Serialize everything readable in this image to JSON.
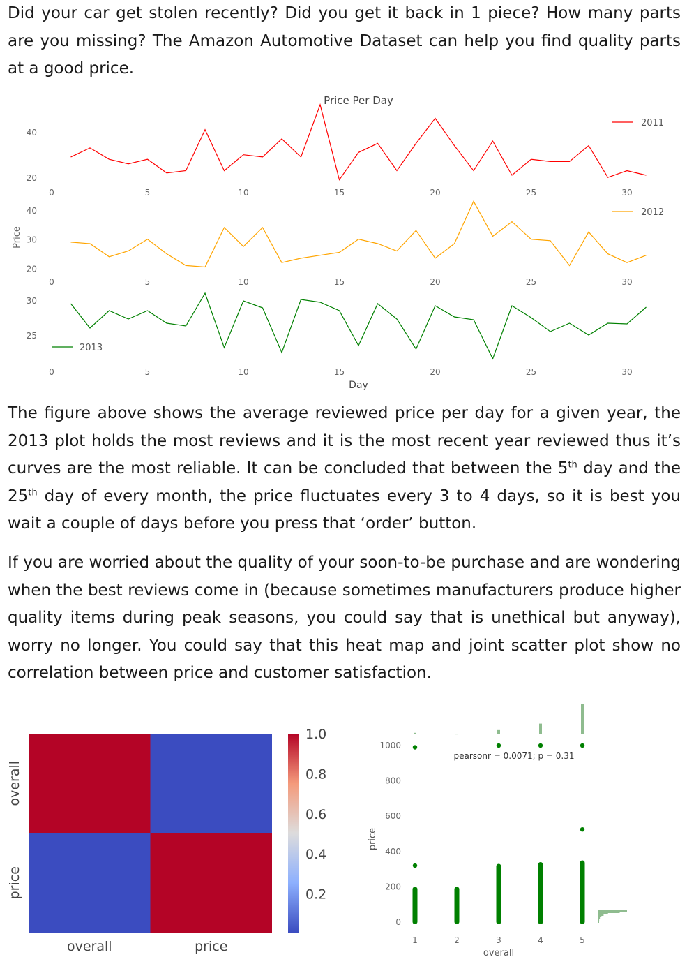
{
  "paragraphs": {
    "p1": "Did your car get stolen recently? Did you get it back in 1 piece? How many parts are you missing? The Amazon Automotive Dataset can help you find quality parts at a good price.",
    "p2_a": "The figure above shows the average reviewed price per day for a given year, the 2013 plot holds the most reviews and it is the most recent year reviewed thus it’s curves are the most reliable. It can be concluded that between the 5",
    "p2_sup1": "th",
    "p2_b": " day and the 25",
    "p2_sup2": "th",
    "p2_c": " day of every month, the price fluctuates every 3 to 4 days, so it is best you wait a couple of days before you press that ‘order’ button.",
    "p3": "If you are worried about the quality of your soon-to-be purchase and are wondering when the best reviews come in (because sometimes manufacturers produce higher quality items during peak seasons, you could say that is unethical but anyway), worry no longer. You could say that this heat map and joint scatter plot show no correlation between price and customer satisfaction."
  },
  "chart_data": [
    {
      "type": "line",
      "title": "Price Per Day",
      "xlabel": "Day",
      "ylabel": "Price",
      "x": [
        1,
        2,
        3,
        4,
        5,
        6,
        7,
        8,
        9,
        10,
        11,
        12,
        13,
        14,
        15,
        16,
        17,
        18,
        19,
        20,
        21,
        22,
        23,
        24,
        25,
        26,
        27,
        28,
        29,
        30,
        31
      ],
      "xticks": [
        0,
        5,
        10,
        15,
        20,
        25,
        30
      ],
      "grid": false,
      "series": [
        {
          "name": "2011",
          "color": "#ff0000",
          "ylim": [
            17,
            52
          ],
          "yticks": [
            20,
            40
          ],
          "values": [
            29,
            33,
            28,
            26,
            28,
            22,
            23,
            41,
            23,
            30,
            29,
            37,
            29,
            52,
            19,
            31,
            35,
            23,
            35,
            46,
            34,
            23,
            36,
            21,
            28,
            27,
            27,
            34,
            20,
            23,
            21
          ]
        },
        {
          "name": "2012",
          "color": "#ffa500",
          "ylim": [
            17.5,
            45
          ],
          "yticks": [
            20,
            30,
            40
          ],
          "values": [
            29,
            28.5,
            24,
            26,
            30,
            25,
            21,
            20.5,
            34,
            27.5,
            34,
            22,
            23.5,
            24.5,
            25.5,
            30,
            28.5,
            26,
            33,
            23.5,
            28.5,
            43,
            31,
            36,
            30,
            29.5,
            21,
            32.5,
            25,
            22,
            24.5
          ]
        },
        {
          "name": "2013",
          "color": "#008000",
          "ylim": [
            21,
            32
          ],
          "yticks": [
            25,
            30
          ],
          "values": [
            29.5,
            26,
            28.5,
            27.3,
            28.5,
            26.7,
            26.3,
            31,
            23.2,
            29.9,
            28.9,
            22.5,
            30.1,
            29.7,
            28.5,
            23.5,
            29.5,
            27.3,
            23,
            29.2,
            27.6,
            27.2,
            21.6,
            29.2,
            27.5,
            25.5,
            26.7,
            25,
            26.7,
            26.6,
            29
          ]
        }
      ]
    },
    {
      "type": "heatmap",
      "rows": [
        "overall",
        "price"
      ],
      "columns": [
        "overall",
        "price"
      ],
      "values": [
        [
          1.0,
          0.0071
        ],
        [
          0.0071,
          1.0
        ]
      ],
      "colormap": "coolwarm",
      "colorbar_ticks": [
        "1.0",
        "0.8",
        "0.6",
        "0.4",
        "0.2"
      ],
      "colorbar_range": [
        0.0071,
        1.0
      ]
    },
    {
      "type": "scatter",
      "xlabel": "overall",
      "ylabel": "price",
      "annotation": "pearsonr = 0.0071; p = 0.31",
      "xticks": [
        "1",
        "2",
        "3",
        "4",
        "5"
      ],
      "yticks": [
        "0",
        "200",
        "400",
        "600",
        "800",
        "1000"
      ],
      "ylim": [
        -30,
        1060
      ],
      "color": "#008000",
      "clusters": [
        {
          "x": 1,
          "dense_max": 200,
          "outliers": [
            320,
            990
          ]
        },
        {
          "x": 2,
          "dense_max": 200,
          "outliers": []
        },
        {
          "x": 3,
          "dense_max": 330,
          "outliers": [
            1000
          ]
        },
        {
          "x": 4,
          "dense_max": 340,
          "outliers": [
            1000
          ]
        },
        {
          "x": 5,
          "dense_max": 350,
          "outliers": [
            525,
            1000
          ]
        }
      ],
      "top_histogram": [
        5,
        2,
        14,
        35,
        100
      ],
      "right_histogram": [
        40,
        30,
        14,
        8,
        5,
        3,
        2,
        2,
        1
      ]
    }
  ]
}
